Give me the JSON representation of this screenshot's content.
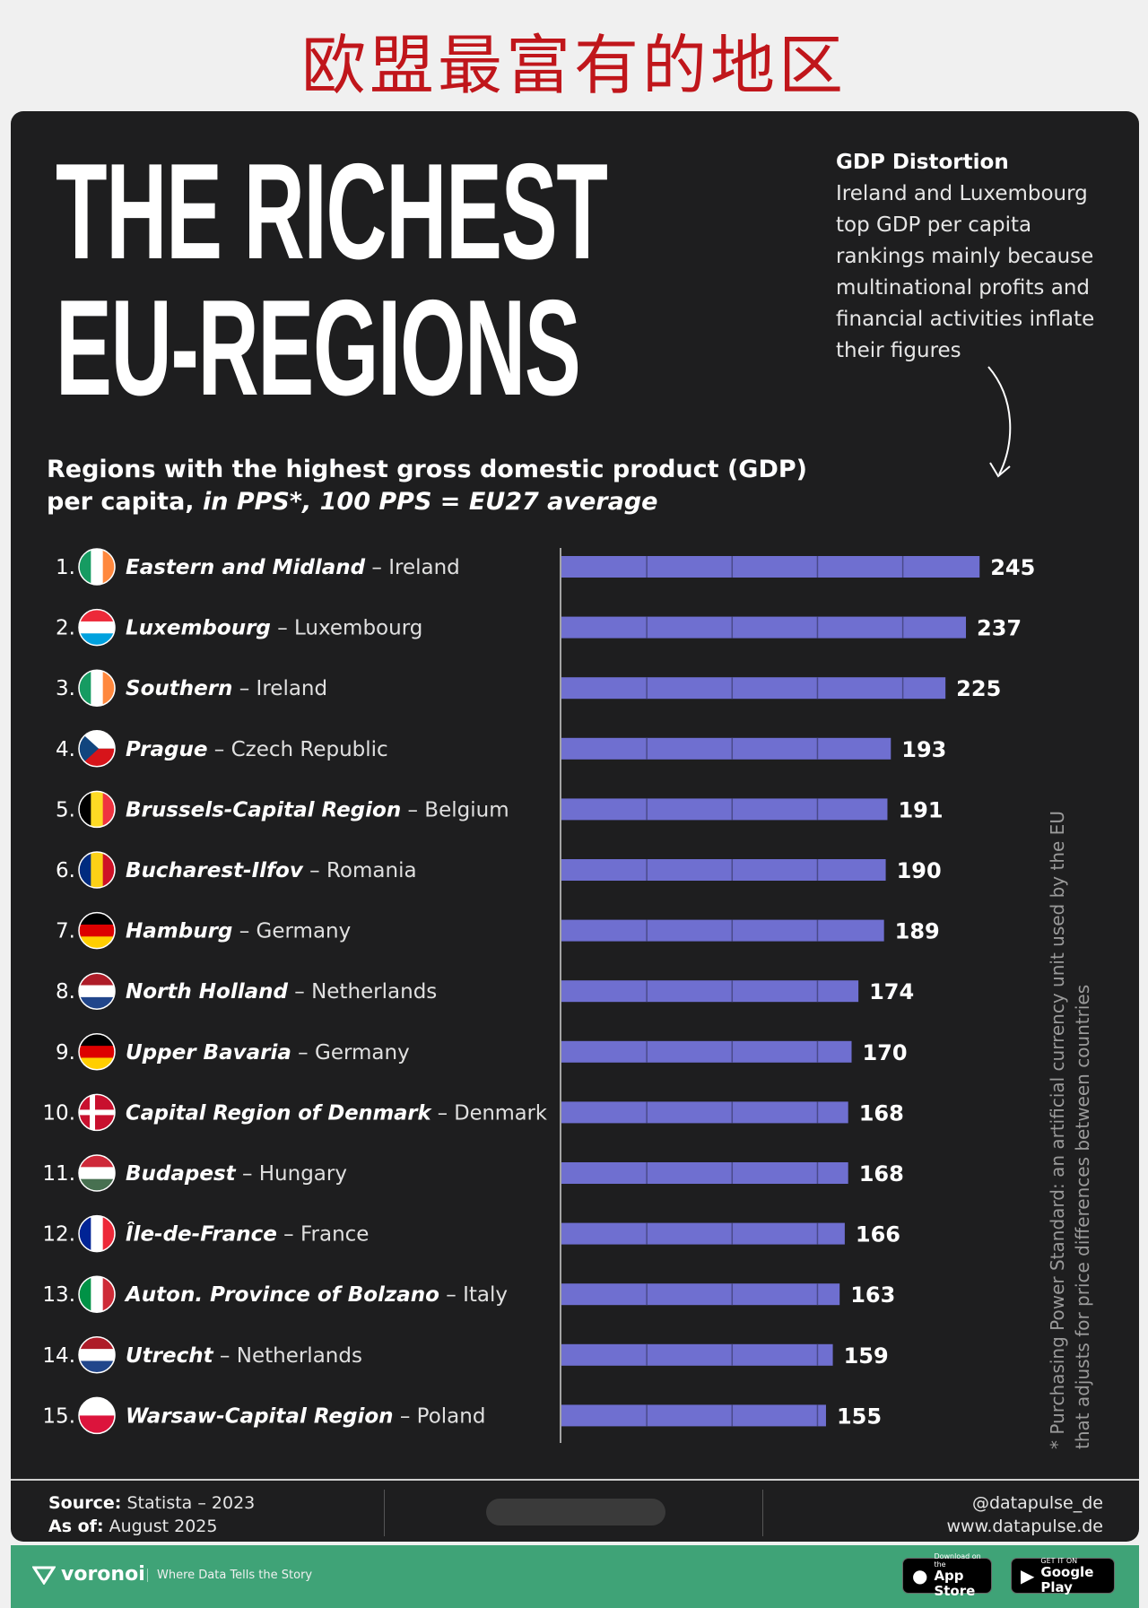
{
  "banner": {
    "title": "欧盟最富有的地区"
  },
  "header": {
    "title_line1": "THE RICHEST",
    "title_line2": "EU-REGIONS"
  },
  "note": {
    "title": "GDP Distortion",
    "body": "Ireland and Luxembourg top GDP per capita rankings mainly because multinational profits and financial activities inflate their figures"
  },
  "subtitle": {
    "line1": "Regions with the highest gross domestic product (GDP)",
    "line2_plain": "per capita, ",
    "line2_italic": "in PPS*, 100 PPS = EU27 average"
  },
  "side_note": "* Purchasing Power Standard: an artificial currency unit used by the EU that adjusts for price differences between countries",
  "colors": {
    "bar": "#6f6fd0",
    "background": "#1e1e1f",
    "accent_green": "#3fa377"
  },
  "chart_data": {
    "type": "bar",
    "orientation": "horizontal",
    "title": "The richest EU-regions",
    "xlabel": "GDP per capita, in PPS (100 PPS = EU27 average)",
    "xlim": [
      0,
      250
    ],
    "categories": [
      {
        "rank": "1.",
        "region": "Eastern and Midland",
        "country": "Ireland",
        "flag": "ireland"
      },
      {
        "rank": "2.",
        "region": "Luxembourg",
        "country": "Luxembourg",
        "flag": "luxembourg"
      },
      {
        "rank": "3.",
        "region": "Southern",
        "country": "Ireland",
        "flag": "ireland"
      },
      {
        "rank": "4.",
        "region": "Prague",
        "country": "Czech Republic",
        "flag": "czech"
      },
      {
        "rank": "5.",
        "region": "Brussels-Capital Region",
        "country": "Belgium",
        "flag": "belgium"
      },
      {
        "rank": "6.",
        "region": "Bucharest-Ilfov",
        "country": "Romania",
        "flag": "romania"
      },
      {
        "rank": "7.",
        "region": "Hamburg",
        "country": "Germany",
        "flag": "germany"
      },
      {
        "rank": "8.",
        "region": "North Holland",
        "country": "Netherlands",
        "flag": "netherlands"
      },
      {
        "rank": "9.",
        "region": "Upper Bavaria",
        "country": "Germany",
        "flag": "germany"
      },
      {
        "rank": "10.",
        "region": "Capital Region of Denmark",
        "country": "Denmark",
        "flag": "denmark"
      },
      {
        "rank": "11.",
        "region": "Budapest",
        "country": "Hungary",
        "flag": "hungary"
      },
      {
        "rank": "12.",
        "region": "Île-de-France",
        "country": "France",
        "flag": "france"
      },
      {
        "rank": "13.",
        "region": "Auton. Province of Bolzano",
        "country": "Italy",
        "flag": "italy"
      },
      {
        "rank": "14.",
        "region": "Utrecht",
        "country": "Netherlands",
        "flag": "netherlands"
      },
      {
        "rank": "15.",
        "region": "Warsaw-Capital Region",
        "country": "Poland",
        "flag": "poland"
      }
    ],
    "values": [
      245,
      237,
      225,
      193,
      191,
      190,
      189,
      174,
      170,
      168,
      168,
      166,
      163,
      159,
      155
    ]
  },
  "footer": {
    "source_label": "Source:",
    "source_value": "Statista – 2023",
    "asof_label": "As of:",
    "asof_value": "August 2025",
    "handle": "@datapulse_de",
    "website": "www.datapulse.de"
  },
  "brand_bar": {
    "brand": "voronoi",
    "tagline": "Where Data Tells the Story",
    "app_store_small": "Download on the",
    "app_store_big": "App Store",
    "google_small": "GET IT ON",
    "google_big": "Google Play"
  }
}
